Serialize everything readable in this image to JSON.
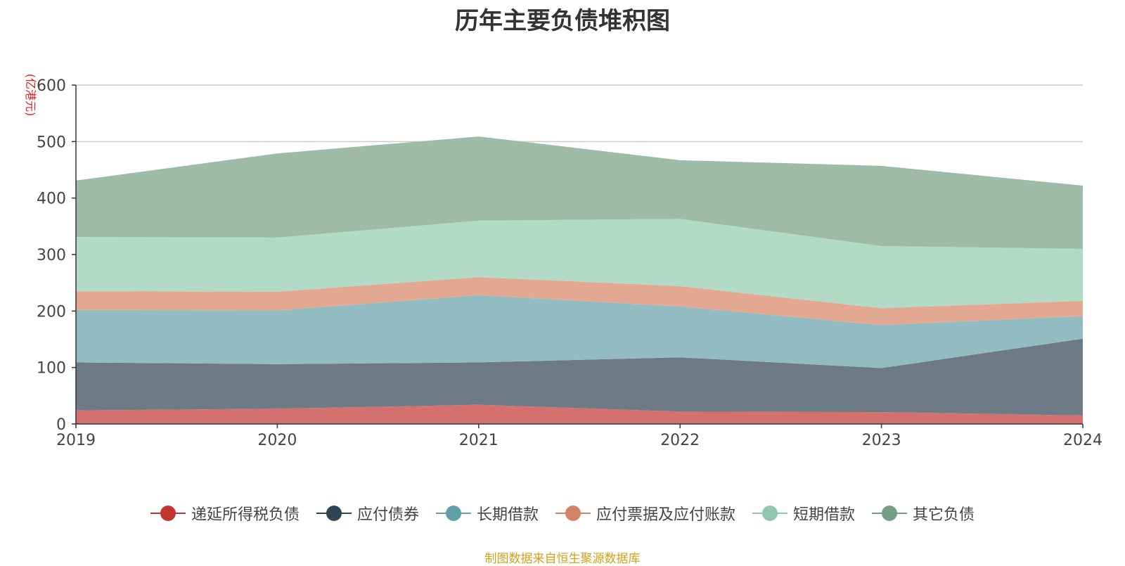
{
  "source_note": "制图数据来自恒生聚源数据库",
  "chart_data": {
    "type": "area",
    "stacked": true,
    "title": "历年主要负债堆积图",
    "unit_label": "(亿港元)",
    "x": [
      "2019",
      "2020",
      "2021",
      "2022",
      "2023",
      "2024"
    ],
    "ylim": [
      0,
      600
    ],
    "yticks": [
      0,
      100,
      200,
      300,
      400,
      500,
      600
    ],
    "grid": true,
    "legend_position": "bottom",
    "series": [
      {
        "name": "递延所得税负债",
        "color": "#c23531",
        "fill": "#d4716f",
        "values": [
          24,
          27,
          34,
          22,
          21,
          15
        ]
      },
      {
        "name": "应付债券",
        "color": "#2f4554",
        "fill": "#6e7b87",
        "values": [
          85,
          79,
          75,
          96,
          78,
          136
        ]
      },
      {
        "name": "长期借款",
        "color": "#61a0a8",
        "fill": "#92bcc2",
        "values": [
          93,
          95,
          119,
          90,
          76,
          40
        ]
      },
      {
        "name": "应付票据及应付账款",
        "color": "#d48265",
        "fill": "#e2a892",
        "values": [
          33,
          33,
          32,
          36,
          30,
          27
        ]
      },
      {
        "name": "短期借款",
        "color": "#91c7ae",
        "fill": "#b2dac6",
        "values": [
          96,
          96,
          100,
          119,
          110,
          92
        ]
      },
      {
        "name": "其它负债",
        "color": "#749f83",
        "fill": "#9ebba7",
        "values": [
          100,
          149,
          149,
          104,
          142,
          112
        ]
      }
    ]
  }
}
